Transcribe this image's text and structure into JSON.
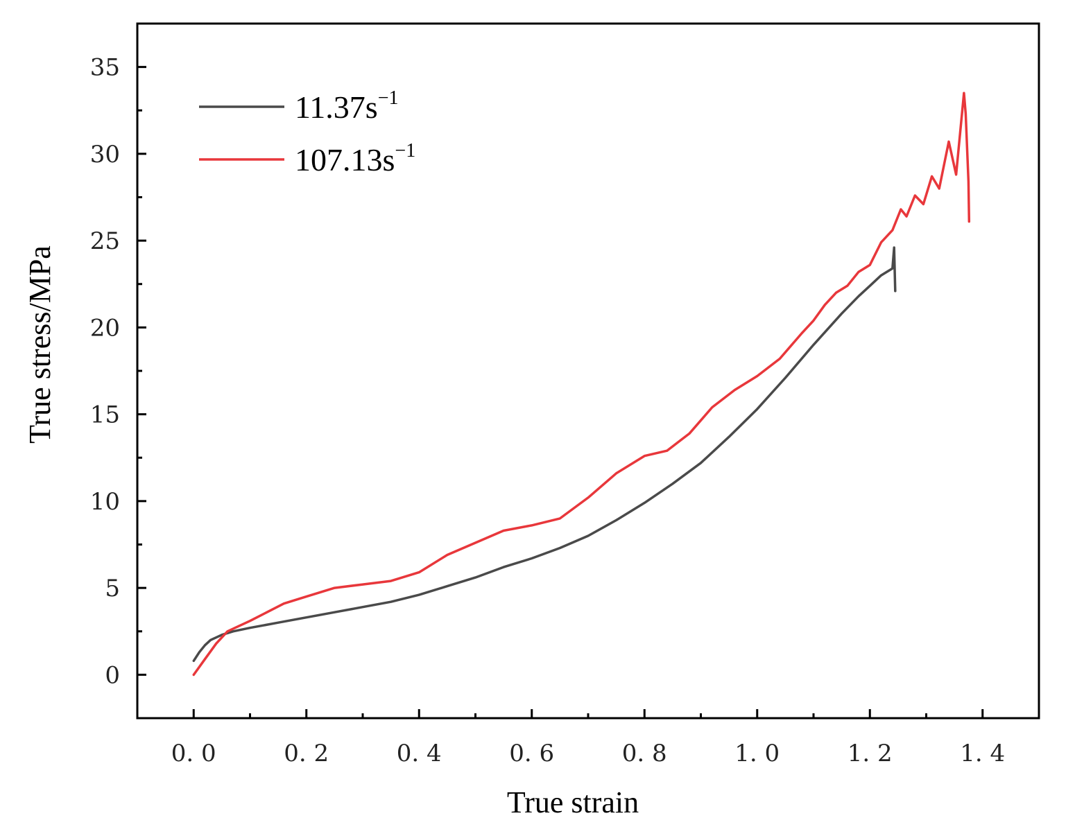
{
  "chart_data": {
    "type": "line",
    "title": "",
    "xlabel": "True strain",
    "ylabel": "True stress/MPa",
    "xlim": [
      -0.1,
      1.5
    ],
    "ylim": [
      -2.5,
      37.5
    ],
    "xticks": [
      0.0,
      0.2,
      0.4,
      0.6,
      0.8,
      1.0,
      1.2,
      1.4
    ],
    "xtick_labels": [
      "0. 0",
      "0. 2",
      "0. 4",
      "0. 6",
      "0. 8",
      "1. 0",
      "1. 2",
      "1. 4"
    ],
    "yticks": [
      0,
      5,
      10,
      15,
      20,
      25,
      30,
      35
    ],
    "ytick_labels": [
      "0",
      "5",
      "10",
      "15",
      "20",
      "25",
      "30",
      "35"
    ],
    "grid": false,
    "legend_position": "top-left",
    "series": [
      {
        "name": "11.37s",
        "superscript": "−1",
        "color": "#4a4a4a",
        "x": [
          0.0,
          0.01,
          0.02,
          0.03,
          0.05,
          0.07,
          0.1,
          0.15,
          0.2,
          0.25,
          0.3,
          0.35,
          0.4,
          0.45,
          0.5,
          0.55,
          0.6,
          0.65,
          0.7,
          0.75,
          0.8,
          0.85,
          0.9,
          0.95,
          1.0,
          1.05,
          1.1,
          1.15,
          1.18,
          1.2,
          1.22,
          1.23,
          1.235,
          1.24,
          1.243,
          1.245
        ],
        "y": [
          0.8,
          1.3,
          1.7,
          2.0,
          2.3,
          2.5,
          2.7,
          3.0,
          3.3,
          3.6,
          3.9,
          4.2,
          4.6,
          5.1,
          5.6,
          6.2,
          6.7,
          7.3,
          8.0,
          8.9,
          9.9,
          11.0,
          12.2,
          13.7,
          15.3,
          17.1,
          19.0,
          20.8,
          21.8,
          22.4,
          23.0,
          23.2,
          23.3,
          23.4,
          24.6,
          22.1
        ]
      },
      {
        "name": "107.13s",
        "superscript": "−1",
        "color": "#e8373b",
        "x": [
          0.0,
          0.02,
          0.04,
          0.06,
          0.08,
          0.1,
          0.13,
          0.16,
          0.2,
          0.25,
          0.3,
          0.35,
          0.4,
          0.45,
          0.5,
          0.55,
          0.6,
          0.65,
          0.7,
          0.75,
          0.8,
          0.84,
          0.88,
          0.92,
          0.96,
          1.0,
          1.04,
          1.08,
          1.1,
          1.12,
          1.14,
          1.16,
          1.18,
          1.2,
          1.22,
          1.24,
          1.255,
          1.265,
          1.28,
          1.295,
          1.31,
          1.323,
          1.34,
          1.353,
          1.367,
          1.37,
          1.375,
          1.376
        ],
        "y": [
          0.0,
          0.9,
          1.8,
          2.5,
          2.8,
          3.1,
          3.6,
          4.1,
          4.5,
          5.0,
          5.2,
          5.4,
          5.9,
          6.9,
          7.6,
          8.3,
          8.6,
          9.0,
          10.2,
          11.6,
          12.6,
          12.9,
          13.9,
          15.4,
          16.4,
          17.2,
          18.2,
          19.7,
          20.4,
          21.3,
          22.0,
          22.4,
          23.2,
          23.6,
          24.9,
          25.6,
          26.8,
          26.4,
          27.6,
          27.1,
          28.7,
          28.0,
          30.7,
          28.8,
          33.5,
          32.3,
          28.4,
          26.1
        ]
      }
    ]
  }
}
